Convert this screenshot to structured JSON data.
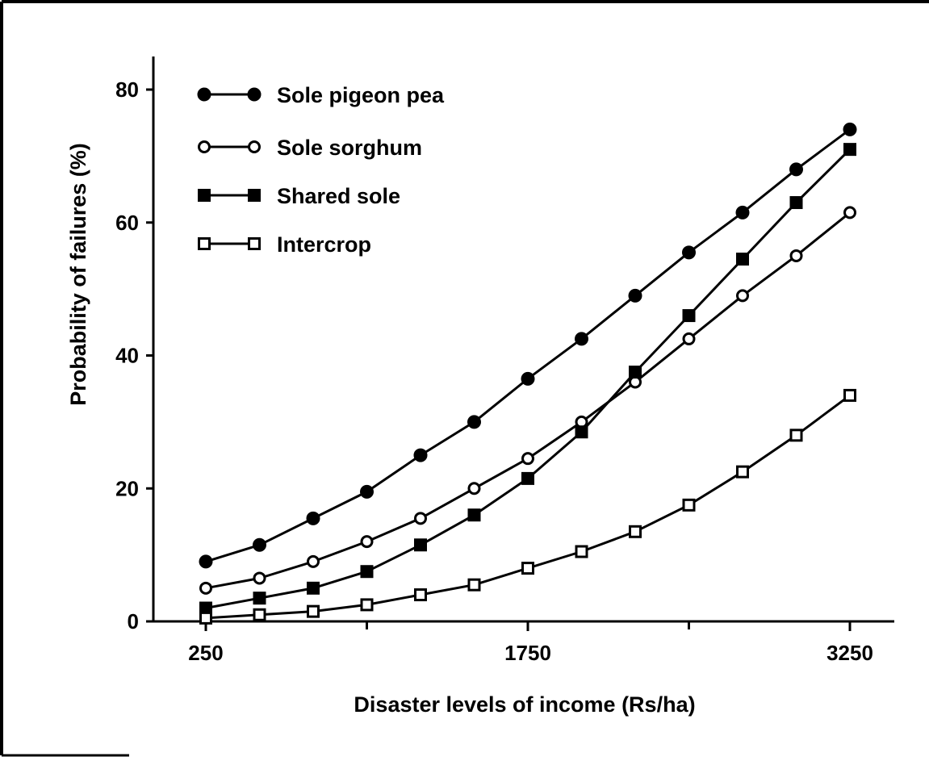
{
  "chart_data": {
    "type": "line",
    "title": "",
    "xlabel": "Disaster levels of income (Rs/ha)",
    "ylabel": "Probability of failures (%)",
    "xlim": [
      100,
      3400
    ],
    "ylim": [
      0,
      85
    ],
    "x_ticks": [
      250,
      1750,
      3250
    ],
    "x_minor_ticks": [
      1000,
      2500
    ],
    "y_ticks": [
      0,
      20,
      40,
      60,
      80
    ],
    "grid": false,
    "legend_position": "top-left",
    "x": [
      250,
      500,
      750,
      1000,
      1250,
      1500,
      1750,
      2000,
      2250,
      2500,
      2750,
      3000,
      3250
    ],
    "series": [
      {
        "name": "Sole pigeon pea",
        "marker": "filled-circle",
        "values": [
          9,
          11.5,
          15.5,
          19.5,
          25,
          30,
          36.5,
          42.5,
          49,
          55.5,
          61.5,
          68,
          74
        ]
      },
      {
        "name": "Sole sorghum",
        "marker": "open-circle",
        "values": [
          5,
          6.5,
          9,
          12,
          15.5,
          20,
          24.5,
          30,
          36,
          42.5,
          49,
          55,
          61.5
        ]
      },
      {
        "name": "Shared sole",
        "marker": "filled-square",
        "values": [
          2,
          3.5,
          5,
          7.5,
          11.5,
          16,
          21.5,
          28.5,
          37.5,
          46,
          54.5,
          63,
          71
        ]
      },
      {
        "name": "Intercrop",
        "marker": "open-square",
        "values": [
          0.5,
          1,
          1.5,
          2.5,
          4,
          5.5,
          8,
          10.5,
          13.5,
          17.5,
          22.5,
          28,
          34
        ]
      }
    ]
  }
}
